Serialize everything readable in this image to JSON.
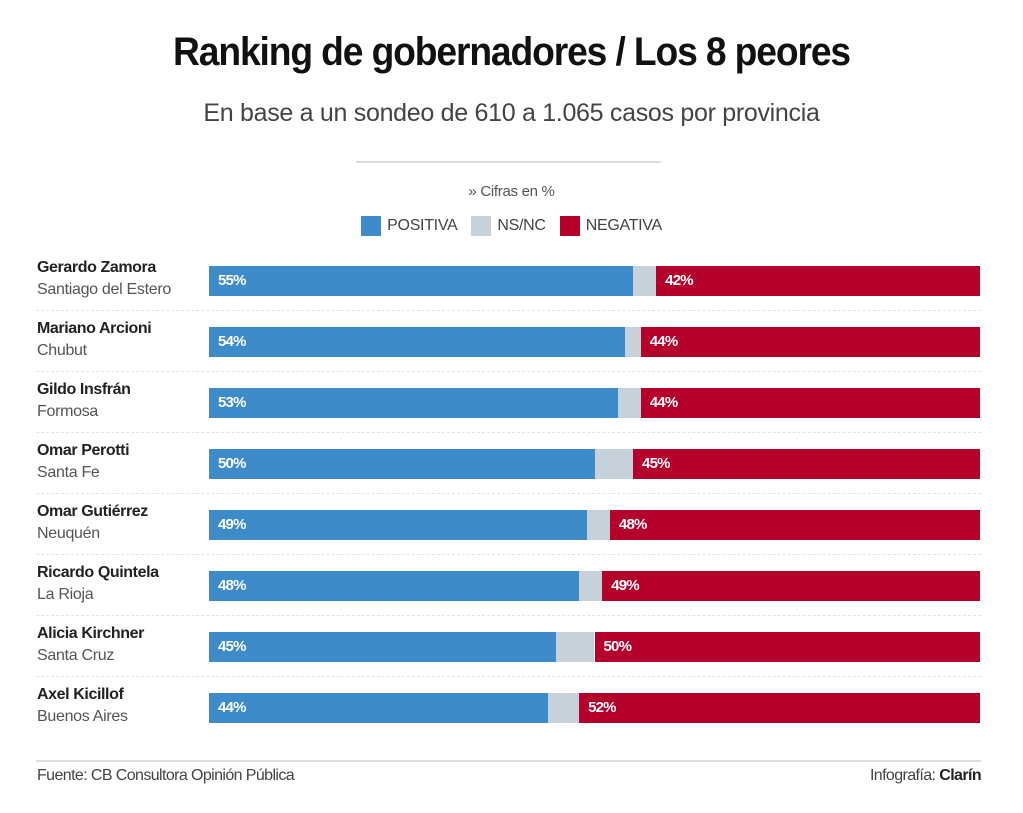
{
  "chart_data": {
    "type": "bar",
    "orientation": "horizontal",
    "stacked": true,
    "title": "Ranking de gobernadores / Los 8 peores",
    "subtitle": "En base a un sondeo de 610 a 1.065 casos por provincia",
    "note": "» Cifras en %",
    "legend": [
      {
        "name": "POSITIVA",
        "color": "#3d8bc9"
      },
      {
        "name": "NS/NC",
        "color": "#c6d1d9"
      },
      {
        "name": "NEGATIVA",
        "color": "#b5002b"
      }
    ],
    "legend_position": "top-center",
    "xlim": [
      0,
      100
    ],
    "categories": [
      {
        "name": "Gerardo Zamora",
        "province": "Santiago del Estero"
      },
      {
        "name": "Mariano Arcioni",
        "province": "Chubut"
      },
      {
        "name": "Gildo Insfrán",
        "province": "Formosa"
      },
      {
        "name": "Omar Perotti",
        "province": "Santa Fe"
      },
      {
        "name": "Omar Gutiérrez",
        "province": "Neuquén"
      },
      {
        "name": "Ricardo Quintela",
        "province": "La Rioja"
      },
      {
        "name": "Alicia Kirchner",
        "province": "Santa Cruz"
      },
      {
        "name": "Axel Kicillof",
        "province": "Buenos Aires"
      }
    ],
    "series": [
      {
        "name": "POSITIVA",
        "values": [
          55,
          54,
          53,
          50,
          49,
          48,
          45,
          44
        ]
      },
      {
        "name": "NS/NC",
        "values": [
          3,
          2,
          3,
          5,
          3,
          3,
          5,
          4
        ]
      },
      {
        "name": "NEGATIVA",
        "values": [
          42,
          44,
          44,
          45,
          48,
          49,
          50,
          52
        ]
      }
    ],
    "value_suffix": "%"
  },
  "footer": {
    "source": "Fuente: CB Consultora Opinión Pública",
    "credit_label": "Infografía:",
    "credit_brand": "Clarín"
  }
}
